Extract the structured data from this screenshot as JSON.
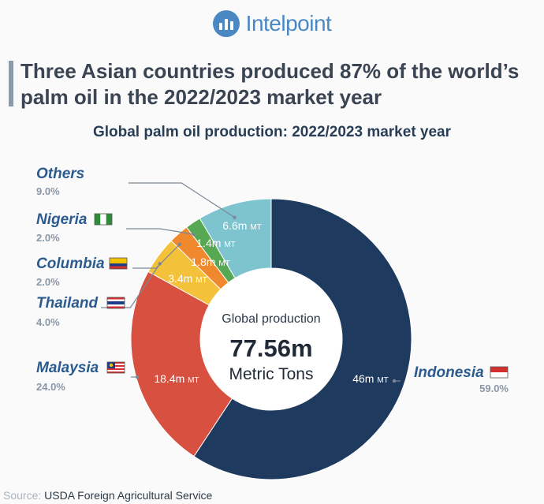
{
  "brand": {
    "name": "Intelpoint",
    "logo_icon": "bar-chart-circle-icon"
  },
  "headline": "Three Asian countries produced 87% of the world’s palm oil in the 2022/2023 market year",
  "source": {
    "label": "Source:",
    "text": "USDA Foreign Agricultural Service"
  },
  "colors": {
    "indonesia": "#1f3a5f",
    "malaysia": "#d8503f",
    "thailand": "#f3c13a",
    "columbia": "#f0882e",
    "nigeria": "#57a852",
    "others": "#7ec4cf",
    "label_blue": "#2b5b8f"
  },
  "chart_data": {
    "type": "pie",
    "title": "Global palm oil production: 2022/2023 market year",
    "center": {
      "title": "Global production",
      "value": "77.56m",
      "unit": "Metric Tons"
    },
    "unit_suffix": "MT",
    "slices": [
      {
        "name": "Indonesia",
        "share": "59.0%",
        "value": 46,
        "label": "46m",
        "flag": "indonesia-flag-icon"
      },
      {
        "name": "Malaysia",
        "share": "24.0%",
        "value": 18.4,
        "label": "18.4m",
        "flag": "malaysia-flag-icon"
      },
      {
        "name": "Thailand",
        "share": "4.0%",
        "value": 3.4,
        "label": "3.4m",
        "flag": "thailand-flag-icon"
      },
      {
        "name": "Columbia",
        "share": "2.0%",
        "value": 1.8,
        "label": "1.8m",
        "flag": "colombia-flag-icon"
      },
      {
        "name": "Nigeria",
        "share": "2.0%",
        "value": 1.4,
        "label": "1.4m",
        "flag": "nigeria-flag-icon"
      },
      {
        "name": "Others",
        "share": "9.0%",
        "value": 6.6,
        "label": "6.6m",
        "flag": ""
      }
    ]
  }
}
